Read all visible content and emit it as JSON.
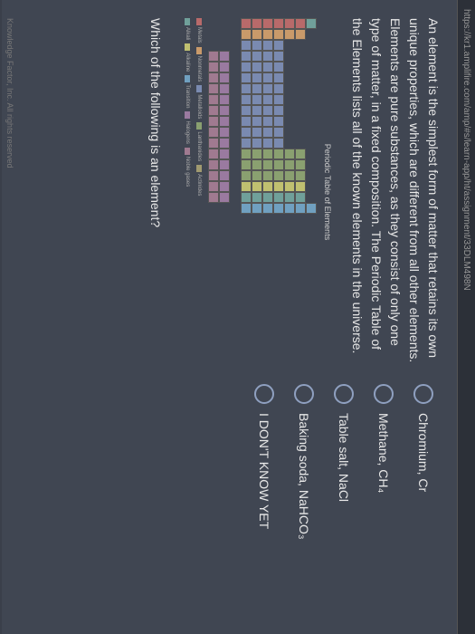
{
  "url": "https://kr1.amplifire.com/amp/#s/learn-app/ht/assignment/33DLM498N",
  "intro": "An element is the simplest form of matter that retains its own unique properties, which are different from all other elements. Elements are pure substances, as they consist of only one type of matter, in a fixed composition. The Periodic Table of the Elements lists all of the known elements in the universe.",
  "periodic_title": "Periodic Table of Elements",
  "question": "Which of the following is an element?",
  "options": {
    "a": "Chromium, Cr",
    "b": "Methane, CH₄",
    "c": "Table salt, NaCl",
    "d": "Baking soda, NaHCO₃",
    "e": "I DON'T KNOW YET"
  },
  "footer": "Knowledge Factor, Inc. All rights reserved",
  "legend": [
    "Metals",
    "Nonmetals",
    "Metalloids",
    "Lanthanides",
    "Actinides",
    "Alkali",
    "Alkaline",
    "Transition",
    "Halogens",
    "Noble gases"
  ],
  "colors": {
    "alk": "#b86a6a",
    "aem": "#c99a6a",
    "tm": "#7a8ab0",
    "pm": "#8aa070",
    "met": "#a09a70",
    "nm": "#70a09a",
    "hal": "#c0c070",
    "ng": "#70a0c0",
    "lan": "#9a7aa0",
    "act": "#a07a90"
  }
}
